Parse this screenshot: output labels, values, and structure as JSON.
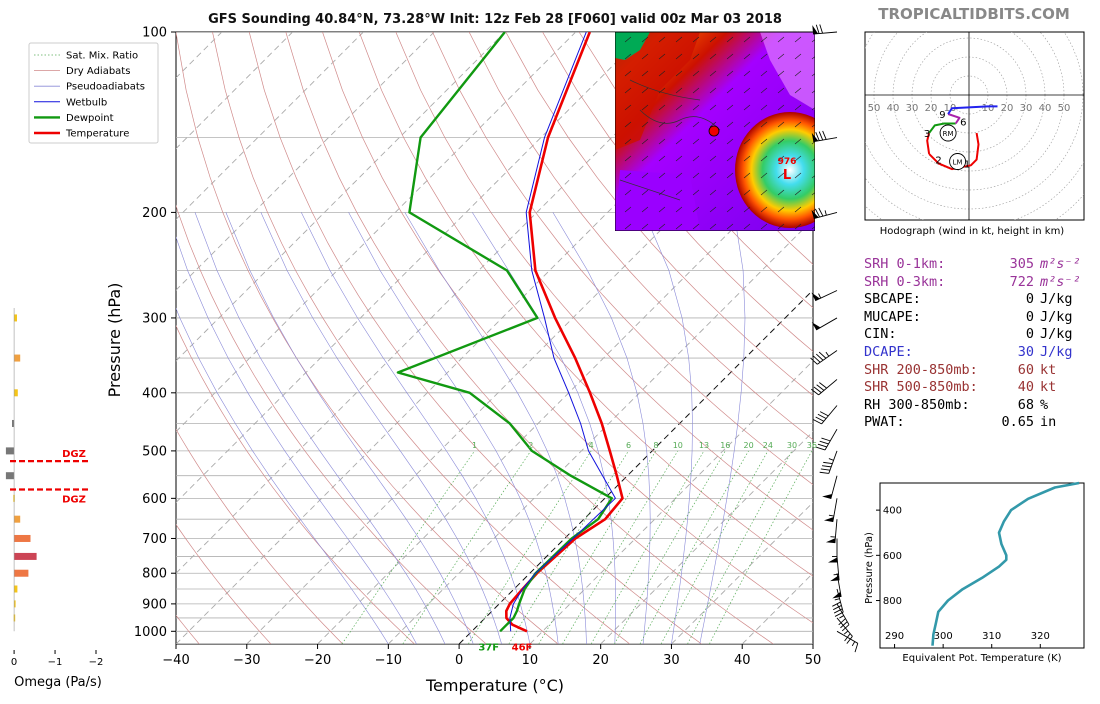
{
  "title": "GFS Sounding 40.84°N, 73.28°W Init: 12z Feb 28 [F060] valid 00z Mar 03 2018",
  "watermark": "TROPICALTIDBITS.COM",
  "colors": {
    "temperature": "#ee0000",
    "dewpoint": "#119911",
    "wetbulb": "#1111dd",
    "dry_adiabat": "#d08a8a",
    "moist_adiabat": "#8a8ad8",
    "mixing_ratio": "#55aa55",
    "stat_purple": "#993399",
    "stat_blue": "#3333cc",
    "stat_brown": "#993333",
    "theta_e": "#3399aa"
  },
  "chart_data": [
    {
      "type": "line",
      "name": "skew-t",
      "xlabel": "Temperature (°C)",
      "ylabel": "Pressure (hPa)",
      "xlim": [
        -40,
        50
      ],
      "ylim": [
        1050,
        100
      ],
      "log_y": true,
      "skewed": true,
      "x_ticks": [
        "−40",
        "−30",
        "−20",
        "−10",
        "0",
        "10",
        "20",
        "30",
        "40",
        "50"
      ],
      "y_ticks": [
        "100",
        "200",
        "300",
        "400",
        "500",
        "600",
        "700",
        "800",
        "900",
        "1000"
      ],
      "legend_position": "upper-left (outside)",
      "legend": [
        "Sat. Mix. Ratio",
        "Dry Adiabats",
        "Pseudoadiabats",
        "Wetbulb",
        "Dewpoint",
        "Temperature"
      ],
      "mixing_ratio_labels": [
        "1",
        "2",
        "4",
        "6",
        "8",
        "10",
        "13",
        "16",
        "20",
        "24",
        "30",
        "36"
      ],
      "series": [
        {
          "name": "Temperature",
          "points": [
            [
              1000,
              7.8
            ],
            [
              975,
              4.8
            ],
            [
              950,
              3
            ],
            [
              925,
              2
            ],
            [
              900,
              1.5
            ],
            [
              850,
              1.2
            ],
            [
              800,
              1
            ],
            [
              700,
              1.5
            ],
            [
              650,
              3
            ],
            [
              600,
              2.5
            ],
            [
              550,
              -1.5
            ],
            [
              500,
              -6
            ],
            [
              450,
              -11
            ],
            [
              400,
              -17
            ],
            [
              350,
              -24
            ],
            [
              300,
              -32.5
            ],
            [
              250,
              -42
            ],
            [
              200,
              -51
            ],
            [
              150,
              -59
            ],
            [
              100,
              -68
            ]
          ]
        },
        {
          "name": "Dewpoint",
          "points": [
            [
              1000,
              4
            ],
            [
              975,
              4
            ],
            [
              950,
              4
            ],
            [
              925,
              3.5
            ],
            [
              900,
              2.8
            ],
            [
              850,
              1.5
            ],
            [
              800,
              0.8
            ],
            [
              700,
              1
            ],
            [
              650,
              2
            ],
            [
              600,
              1
            ],
            [
              550,
              -8
            ],
            [
              500,
              -17
            ],
            [
              450,
              -24
            ],
            [
              400,
              -34
            ],
            [
              370,
              -47
            ],
            [
              300,
              -35
            ],
            [
              250,
              -46
            ],
            [
              200,
              -68
            ],
            [
              150,
              -77
            ],
            [
              100,
              -80
            ]
          ]
        },
        {
          "name": "Wetbulb",
          "points": [
            [
              1000,
              5.5
            ],
            [
              950,
              3.5
            ],
            [
              900,
              2
            ],
            [
              850,
              1.2
            ],
            [
              800,
              0.8
            ],
            [
              700,
              1.2
            ],
            [
              600,
              1.5
            ],
            [
              550,
              -3.5
            ],
            [
              500,
              -9
            ],
            [
              450,
              -14
            ],
            [
              400,
              -20
            ],
            [
              350,
              -27
            ],
            [
              300,
              -34
            ],
            [
              250,
              -42.5
            ],
            [
              200,
              -51.5
            ],
            [
              150,
              -59.5
            ],
            [
              100,
              -68.5
            ]
          ]
        }
      ],
      "annotations": [
        {
          "text": "37F",
          "color": "#119911",
          "pressure": 1025,
          "temp": 3.3
        },
        {
          "text": "46F",
          "color": "#ee0000",
          "pressure": 1025,
          "temp": 8
        }
      ]
    },
    {
      "type": "bar",
      "name": "omega",
      "xlabel": "Omega (Pa/s)",
      "x_ticks": [
        "0",
        "−1",
        "−2"
      ],
      "xlim": [
        0.1,
        -2.0
      ],
      "orientation": "horizontal",
      "dgz_label": "DGZ",
      "dgz_pressures": [
        520,
        580
      ],
      "bars": [
        {
          "pressure": 300,
          "value": -0.07
        },
        {
          "pressure": 350,
          "value": -0.15
        },
        {
          "pressure": 400,
          "value": -0.09
        },
        {
          "pressure": 450,
          "value": 0.05
        },
        {
          "pressure": 500,
          "value": 0.2
        },
        {
          "pressure": 550,
          "value": 0.2
        },
        {
          "pressure": 600,
          "value": 0.02
        },
        {
          "pressure": 650,
          "value": -0.15
        },
        {
          "pressure": 700,
          "value": -0.4
        },
        {
          "pressure": 750,
          "value": -0.55
        },
        {
          "pressure": 800,
          "value": -0.35
        },
        {
          "pressure": 850,
          "value": -0.08
        },
        {
          "pressure": 900,
          "value": -0.02
        },
        {
          "pressure": 950,
          "value": 0.01
        }
      ]
    },
    {
      "type": "line",
      "name": "hodograph",
      "title": "Hodograph (wind in kt, height in km)",
      "ring_labels": [
        "50",
        "40",
        "30",
        "20",
        "10",
        "10",
        "20",
        "30",
        "40",
        "50"
      ],
      "storm_motion_labels": [
        "RM",
        "LM"
      ],
      "height_labels": [
        {
          "text": "1",
          "u": -1,
          "v": -36
        },
        {
          "text": "2",
          "u": -16,
          "v": -34
        },
        {
          "text": "3",
          "u": -22,
          "v": -20
        },
        {
          "text": "6",
          "u": -3,
          "v": -14
        },
        {
          "text": "9",
          "u": -14,
          "v": -10
        }
      ],
      "rm": {
        "u": -11,
        "v": -20
      },
      "lm": {
        "u": -6,
        "v": -35
      },
      "segments": [
        {
          "color": "#ee0000",
          "points": [
            [
              4,
              -20
            ],
            [
              5,
              -26
            ],
            [
              4,
              -34
            ],
            [
              1,
              -37
            ],
            [
              -4,
              -38
            ]
          ]
        },
        {
          "color": "#ee0000",
          "points": [
            [
              -4,
              -38
            ],
            [
              -9,
              -39
            ],
            [
              -16,
              -36
            ],
            [
              -21,
              -31
            ]
          ]
        },
        {
          "color": "#ee0000",
          "points": [
            [
              -21,
              -31
            ],
            [
              -22,
              -24
            ],
            [
              -21,
              -20
            ]
          ]
        },
        {
          "color": "#119911",
          "points": [
            [
              -21,
              -20
            ],
            [
              -18,
              -16
            ],
            [
              -13,
              -15
            ],
            [
              -7,
              -15
            ]
          ]
        },
        {
          "color": "#aa22aa",
          "points": [
            [
              -7,
              -15
            ],
            [
              -5,
              -12
            ],
            [
              -11,
              -10
            ]
          ]
        },
        {
          "color": "#2222ee",
          "points": [
            [
              -11,
              -10
            ],
            [
              -9,
              -7
            ],
            [
              10,
              -6
            ],
            [
              15,
              -6
            ]
          ]
        }
      ]
    },
    {
      "type": "line",
      "name": "theta-e",
      "xlabel": "Equivalent Pot. Temperature (K)",
      "ylabel": "Pressure (hPa)",
      "x_ticks": [
        "290",
        "300",
        "310",
        "320"
      ],
      "y_ticks": [
        "400",
        "600",
        "800"
      ],
      "xlim": [
        287,
        329
      ],
      "ylim": [
        1010,
        280
      ],
      "values": [
        [
          1000,
          297.8
        ],
        [
          950,
          298
        ],
        [
          900,
          298.5
        ],
        [
          850,
          299
        ],
        [
          800,
          301
        ],
        [
          750,
          304
        ],
        [
          700,
          308
        ],
        [
          650,
          311.5
        ],
        [
          620,
          313
        ],
        [
          600,
          313
        ],
        [
          550,
          312
        ],
        [
          500,
          311.5
        ],
        [
          450,
          312.5
        ],
        [
          400,
          314
        ],
        [
          350,
          317.5
        ],
        [
          300,
          323
        ],
        [
          280,
          328
        ]
      ]
    }
  ],
  "stats": [
    {
      "label": "SRH 0-1km:",
      "value": "305",
      "unit": "m²s⁻²",
      "color": "#993399"
    },
    {
      "label": "SRH 0-3km:",
      "value": "722",
      "unit": "m²s⁻²",
      "color": "#993399"
    },
    {
      "label": "SBCAPE:",
      "value": "0",
      "unit": "J/kg",
      "color": "#000000"
    },
    {
      "label": "MUCAPE:",
      "value": "0",
      "unit": "J/kg",
      "color": "#000000"
    },
    {
      "label": "CIN:",
      "value": "0",
      "unit": "J/kg",
      "color": "#000000"
    },
    {
      "label": "DCAPE:",
      "value": "30",
      "unit": "J/kg",
      "color": "#3333cc"
    },
    {
      "label": "SHR 200-850mb:",
      "value": "60",
      "unit": "kt",
      "color": "#993333"
    },
    {
      "label": "SHR 500-850mb:",
      "value": "40",
      "unit": "kt",
      "color": "#993333"
    },
    {
      "label": "RH 300-850mb:",
      "value": "68",
      "unit": "%",
      "color": "#000000"
    },
    {
      "label": "PWAT:",
      "value": "0.65",
      "unit": "in",
      "color": "#000000"
    }
  ],
  "wind_barbs": [
    {
      "pressure": 100,
      "speed": 70,
      "dir": 265
    },
    {
      "pressure": 150,
      "speed": 80,
      "dir": 260
    },
    {
      "pressure": 200,
      "speed": 75,
      "dir": 255
    },
    {
      "pressure": 270,
      "speed": 55,
      "dir": 245
    },
    {
      "pressure": 300,
      "speed": 50,
      "dir": 240
    },
    {
      "pressure": 340,
      "speed": 45,
      "dir": 235
    },
    {
      "pressure": 380,
      "speed": 40,
      "dir": 230
    },
    {
      "pressure": 420,
      "speed": 40,
      "dir": 220
    },
    {
      "pressure": 460,
      "speed": 40,
      "dir": 210
    },
    {
      "pressure": 500,
      "speed": 45,
      "dir": 200
    },
    {
      "pressure": 550,
      "speed": 50,
      "dir": 195
    },
    {
      "pressure": 600,
      "speed": 55,
      "dir": 190
    },
    {
      "pressure": 650,
      "speed": 55,
      "dir": 185
    },
    {
      "pressure": 700,
      "speed": 55,
      "dir": 180
    },
    {
      "pressure": 750,
      "speed": 55,
      "dir": 175
    },
    {
      "pressure": 800,
      "speed": 50,
      "dir": 170
    },
    {
      "pressure": 850,
      "speed": 45,
      "dir": 165
    },
    {
      "pressure": 900,
      "speed": 35,
      "dir": 150
    },
    {
      "pressure": 950,
      "speed": 25,
      "dir": 140
    },
    {
      "pressure": 1000,
      "speed": 15,
      "dir": 120
    }
  ],
  "inset_map": {
    "low_label": "L",
    "low_value": "976"
  }
}
